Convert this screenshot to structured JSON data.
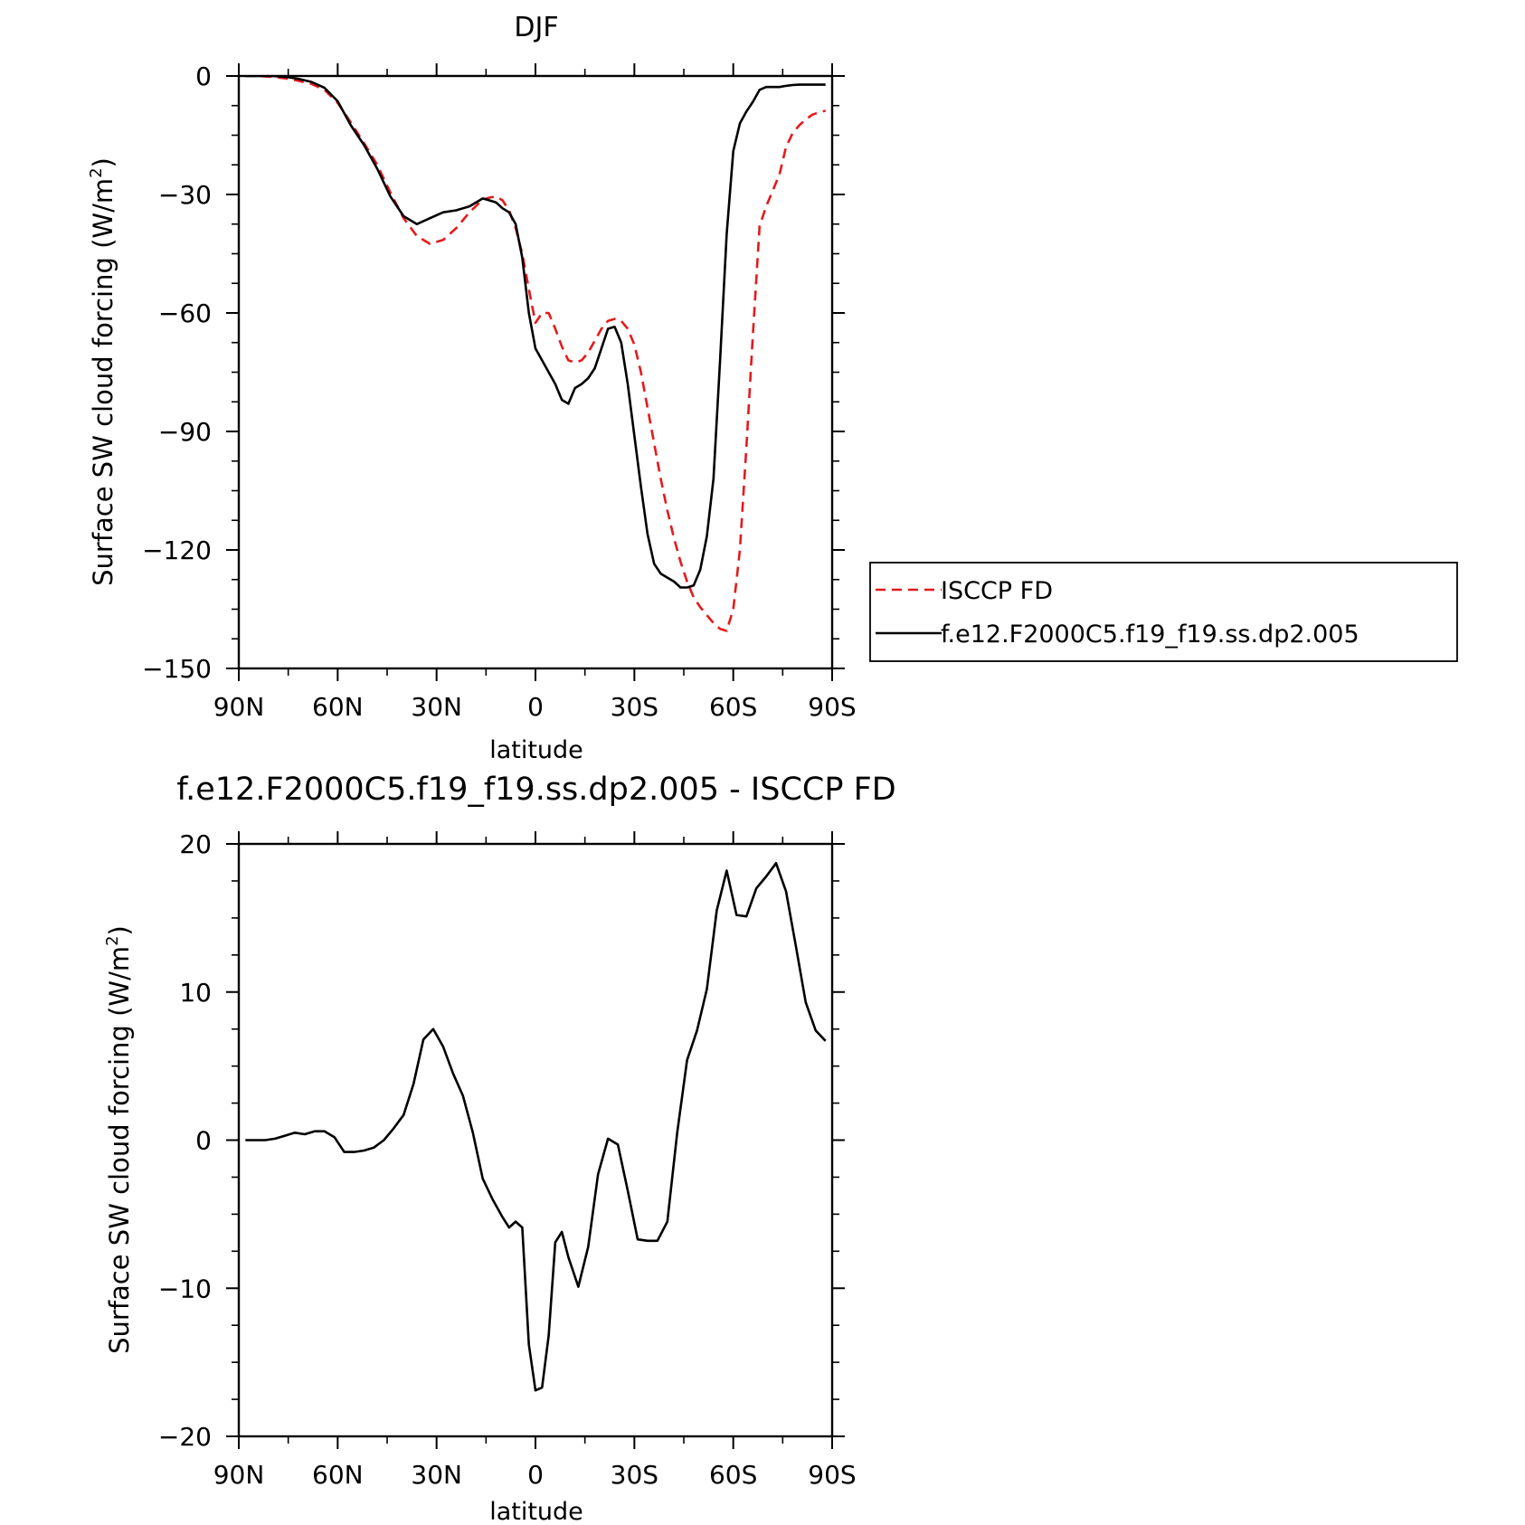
{
  "chart_data": [
    {
      "type": "line",
      "title": "DJF",
      "xlabel": "latitude",
      "ylabel": "Surface SW cloud forcing (W/m²)",
      "ylabel_main": "Surface SW cloud forcing (W/m",
      "ylabel_sup": "2",
      "ylabel_end": ")",
      "xlim": [
        90,
        -90
      ],
      "ylim": [
        -150,
        0
      ],
      "xticks": [
        90,
        60,
        30,
        0,
        -30,
        -60,
        -90
      ],
      "xticklabels": [
        "90N",
        "60N",
        "30N",
        "0",
        "30S",
        "60S",
        "90S"
      ],
      "yticks": [
        0,
        -30,
        -60,
        -90,
        -120,
        -150
      ],
      "yticklabels": [
        "0",
        "-30",
        "-60",
        "-90",
        "-120",
        "-150"
      ],
      "legend": "right",
      "series": [
        {
          "name": "ISCCP FD",
          "color": "#e41a1c",
          "dash": "dashed",
          "x": [
            88,
            84,
            80,
            76,
            72,
            68,
            64,
            60,
            56,
            52,
            48,
            44,
            40,
            36,
            32,
            28,
            24,
            20,
            16,
            14,
            12,
            10,
            8,
            6,
            4,
            2,
            0,
            -2,
            -4,
            -6,
            -8,
            -10,
            -12,
            -14,
            -16,
            -18,
            -20,
            -22,
            -24,
            -26,
            -28,
            -30,
            -32,
            -34,
            -36,
            -38,
            -40,
            -42,
            -44,
            -46,
            -48,
            -50,
            -52,
            -54,
            -56,
            -58,
            -60,
            -62,
            -64,
            -66,
            -68,
            -70,
            -72,
            -74,
            -76,
            -78,
            -80,
            -82,
            -84,
            -86,
            -88
          ],
          "y": [
            0,
            0,
            -0.2,
            -0.6,
            -1.2,
            -2,
            -3.5,
            -6.8,
            -11.8,
            -17,
            -22.5,
            -29.5,
            -36,
            -40.5,
            -42.5,
            -41.5,
            -38.5,
            -34.5,
            -31.3,
            -30.8,
            -30.5,
            -31.5,
            -34,
            -38.5,
            -45,
            -54,
            -62.5,
            -60,
            -60,
            -64,
            -68.5,
            -72,
            -72.5,
            -72,
            -70,
            -67,
            -64,
            -62,
            -61.5,
            -62,
            -64,
            -68,
            -75,
            -84,
            -93,
            -102,
            -110,
            -117,
            -123,
            -128,
            -132,
            -134.5,
            -136.5,
            -138.5,
            -140,
            -140.5,
            -135,
            -120,
            -94,
            -65,
            -38,
            -33,
            -29,
            -25,
            -18,
            -14.5,
            -12.5,
            -11,
            -9.8,
            -9.2,
            -8.8
          ]
        },
        {
          "name": "f.e12.F2000C5.f19_f19.ss.dp2.005",
          "color": "#000000",
          "dash": "solid",
          "x": [
            88,
            84,
            80,
            76,
            72,
            68,
            64,
            60,
            56,
            52,
            48,
            44,
            40,
            36,
            32,
            28,
            24,
            20,
            16,
            14,
            12,
            10,
            8,
            6,
            4,
            2,
            0,
            -2,
            -4,
            -6,
            -8,
            -10,
            -12,
            -14,
            -16,
            -18,
            -20,
            -22,
            -24,
            -26,
            -28,
            -30,
            -32,
            -34,
            -36,
            -38,
            -40,
            -42,
            -44,
            -46,
            -48,
            -50,
            -52,
            -54,
            -56,
            -58,
            -60,
            -62,
            -64,
            -66,
            -68,
            -70,
            -72,
            -74,
            -76,
            -78,
            -80,
            -82,
            -84,
            -86,
            -88
          ],
          "y": [
            0,
            0,
            0,
            -0.2,
            -0.7,
            -1.5,
            -3,
            -6.4,
            -12.5,
            -17.5,
            -23.5,
            -30.5,
            -35.5,
            -37.5,
            -36,
            -34.5,
            -34,
            -33,
            -31,
            -31.5,
            -32,
            -33.5,
            -34.5,
            -37.5,
            -46,
            -60,
            -69,
            -72,
            -75,
            -78,
            -82,
            -83,
            -79,
            -78,
            -76.5,
            -74,
            -69,
            -64,
            -63.5,
            -67.5,
            -78,
            -91,
            -104,
            -116,
            -123.5,
            -126,
            -127,
            -128,
            -129.5,
            -129.5,
            -129,
            -125,
            -116.5,
            -102,
            -72,
            -40,
            -19,
            -12,
            -9,
            -6.5,
            -3.5,
            -2.8,
            -2.8,
            -2.8,
            -2.5,
            -2.3,
            -2.2,
            -2.2,
            -2.2,
            -2.2,
            -2.2
          ]
        }
      ]
    },
    {
      "type": "line",
      "title": "f.e12.F2000C5.f19_f19.ss.dp2.005 - ISCCP FD",
      "xlabel": "latitude",
      "ylabel": "Surface SW cloud forcing (W/m²)",
      "ylabel_main": "Surface SW cloud forcing (W/m",
      "ylabel_sup": "2",
      "ylabel_end": ")",
      "xlim": [
        90,
        -90
      ],
      "ylim": [
        -20,
        20
      ],
      "xticks": [
        90,
        60,
        30,
        0,
        -30,
        -60,
        -90
      ],
      "xticklabels": [
        "90N",
        "60N",
        "30N",
        "0",
        "30S",
        "60S",
        "90S"
      ],
      "yticks": [
        20,
        10,
        0,
        -10,
        -20
      ],
      "yticklabels": [
        "20",
        "10",
        "0",
        "-10",
        "-20"
      ],
      "series": [
        {
          "color": "#000000",
          "dash": "solid",
          "x": [
            88,
            85,
            82,
            79,
            76,
            73,
            70,
            67,
            64,
            61,
            58,
            55,
            52,
            49,
            46,
            43,
            40,
            37,
            34,
            31,
            28,
            25,
            22,
            19,
            16,
            13,
            10,
            8,
            6,
            4,
            2,
            0,
            -2,
            -4,
            -6,
            -8,
            -10,
            -13,
            -16,
            -19,
            -22,
            -25,
            -28,
            -31,
            -34,
            -37,
            -40,
            -43,
            -46,
            -49,
            -52,
            -55,
            -58,
            -61,
            -64,
            -67,
            -70,
            -73,
            -76,
            -79,
            -82,
            -85,
            -88
          ],
          "y": [
            0,
            0,
            0,
            0.1,
            0.3,
            0.5,
            0.4,
            0.6,
            0.6,
            0.2,
            -0.8,
            -0.8,
            -0.7,
            -0.5,
            0,
            0.8,
            1.7,
            3.8,
            6.8,
            7.5,
            6.3,
            4.5,
            3,
            0.5,
            -2.6,
            -4,
            -5.2,
            -5.9,
            -5.5,
            -5.9,
            -13.8,
            -16.9,
            -16.7,
            -13.2,
            -6.9,
            -6.2,
            -7.9,
            -9.9,
            -7.2,
            -2.3,
            0.1,
            -0.3,
            -3.4,
            -6.7,
            -6.8,
            -6.8,
            -5.5,
            0.5,
            5.4,
            7.4,
            10.2,
            15.5,
            18.2,
            15.2,
            15.1,
            17,
            17.8,
            18.7,
            16.8,
            13.1,
            9.3,
            7.4,
            6.7
          ]
        }
      ]
    }
  ]
}
